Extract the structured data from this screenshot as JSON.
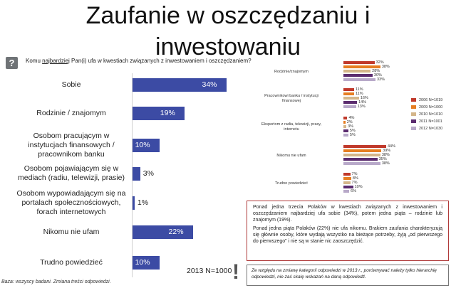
{
  "title": {
    "line1": "Zaufanie w oszczędzaniu i",
    "line2": "inwestowaniu"
  },
  "question": {
    "icon": "question-icon",
    "prefix": "Komu ",
    "emph": "najbardziej",
    "suffix": " Pan(i) ufa w kwestiach związanych z inwestowaniem i oszczędzaniem?"
  },
  "chart_data": [
    {
      "type": "bar",
      "orientation": "horizontal",
      "categories": [
        "Sobie",
        "Rodzinie / znajomym",
        "Osobom pracującym w instytucjach finansowych / pracownikom banku",
        "Osobom pojawiającym się w mediach (radiu, telewizji, prasie)",
        "Osobom wypowiadającym się na portalach społecznościowych, forach internetowych",
        "Nikomu nie ufam",
        "Trudno powiedzieć"
      ],
      "category_lines": [
        [
          "Sobie"
        ],
        [
          "Rodzinie / znajomym"
        ],
        [
          "Osobom pracującym w",
          "instytucjach finansowych /",
          "pracownikom banku"
        ],
        [
          "Osobom pojawiającym się w",
          "mediach (radiu, telewizji, prasie)"
        ],
        [
          "Osobom wypowiadającym się na",
          "portalach społecznościowych,",
          "forach internetowych"
        ],
        [
          "Nikomu nie ufam"
        ],
        [
          "Trudno powiedzieć"
        ]
      ],
      "values": [
        34,
        19,
        10,
        3,
        1,
        22,
        10
      ],
      "labels": [
        "34%",
        "19%",
        "10%",
        "3%",
        "1%",
        "22%",
        "10%"
      ],
      "series_label": "2013 N=1000",
      "color": "#3c4ba4",
      "xlim": [
        0,
        40
      ]
    },
    {
      "type": "bar",
      "orientation": "horizontal",
      "categories": [
        "Rodzinie/znajomym",
        "Pracownikowi banku / instytucji finansowej",
        "Ekspertom z radia, telewizji, prasy, internetu",
        "Nikomu nie ufam",
        "Trudno powiedzieć"
      ],
      "category_lines": [
        [
          "Rodzinie/znajomym"
        ],
        [
          "Pracownikowi banku / instytucji",
          "finansowej"
        ],
        [
          "Ekspertom z radia, telewizji, prasy,",
          "internetu"
        ],
        [
          "Nikomu nie ufam"
        ],
        [
          "Trudno powiedzieć"
        ]
      ],
      "series": [
        {
          "name": "2006 N=1019",
          "color": "#c0392b",
          "values": [
            32,
            11,
            4,
            44,
            7
          ]
        },
        {
          "name": "2009 N=1000",
          "color": "#e67e22",
          "values": [
            38,
            11,
            2,
            39,
            8
          ]
        },
        {
          "name": "2010 N=1010",
          "color": "#d4b68a",
          "values": [
            28,
            16,
            3,
            38,
            7
          ]
        },
        {
          "name": "2011 N=1001",
          "color": "#5b2c6f",
          "values": [
            30,
            14,
            5,
            35,
            10
          ]
        },
        {
          "name": "2012 N=1030",
          "color": "#b8a9c9",
          "values": [
            33,
            13,
            5,
            38,
            6
          ]
        }
      ],
      "xlim": [
        0,
        50
      ],
      "legend_position": "right"
    }
  ],
  "box_main": {
    "p1": "Ponad jedna trzecia Polaków w kwestiach związanych z inwestowaniem i oszczędzaniem najbardziej ufa sobie (34%), potem jedna piąta – rodzinie lub znajomym (19%).",
    "p2": "Ponad jedna piąta Polaków (22%) nie ufa nikomu. Brakiem zaufania charakteryzują się głównie osoby, które wydają wszystko na bieżące potrzeby, żyją „od pierwszego do pierwszego” i nie są w stanie nic zaoszczędzić."
  },
  "box_note": "Ze względu na zmianę kategorii odpowiedzi w 2013 r., porównywać należy tylko hierarchię odpowiedzi, nie zaś skalę wskazań na daną odpowiedź.",
  "footnote": "Baza: wszyscy badani. Zmiana treści odpowiedzi.",
  "exclamation": "!"
}
